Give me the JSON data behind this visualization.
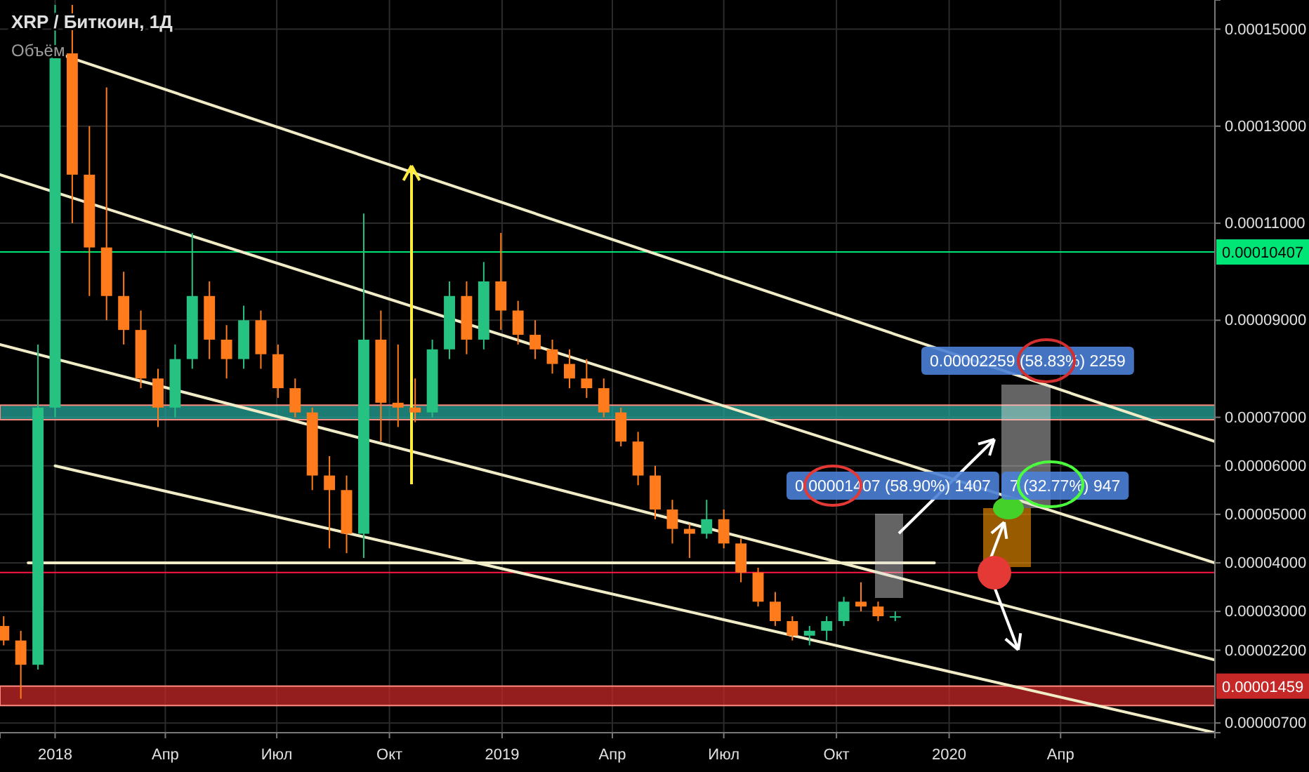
{
  "chart_data": {
    "type": "candlestick",
    "title": "XRP / Биткоин, 1Д",
    "annotations": [
      "Объём",
      "0.00001407 (58.90%) 1407",
      "7 (32.77%) 947",
      "0.00002259 (58.83%) 2259"
    ],
    "x": [
      "2017-11-20",
      "2017-12-04",
      "2017-12-18",
      "2018-01-01",
      "2018-01-15",
      "2018-01-29",
      "2018-02-12",
      "2018-02-26",
      "2018-03-12",
      "2018-03-26",
      "2018-04-09",
      "2018-04-23",
      "2018-05-07",
      "2018-05-21",
      "2018-06-04",
      "2018-06-18",
      "2018-07-02",
      "2018-07-16",
      "2018-07-30",
      "2018-08-13",
      "2018-08-27",
      "2018-09-10",
      "2018-09-24",
      "2018-10-08",
      "2018-10-22",
      "2018-11-05",
      "2018-11-19",
      "2018-12-03",
      "2018-12-17",
      "2018-12-31",
      "2019-01-14",
      "2019-01-28",
      "2019-02-11",
      "2019-02-25",
      "2019-03-11",
      "2019-03-25",
      "2019-04-08",
      "2019-04-22",
      "2019-05-06",
      "2019-05-20",
      "2019-06-03",
      "2019-06-17",
      "2019-07-01",
      "2019-07-15",
      "2019-07-29",
      "2019-08-12",
      "2019-08-26",
      "2019-09-09",
      "2019-09-23",
      "2019-10-07",
      "2019-10-21",
      "2019-11-04",
      "2019-11-18"
    ],
    "ohlc": [
      [
        2.7e-05,
        2.9e-05,
        2.3e-05,
        2.4e-05
      ],
      [
        2.4e-05,
        2.6e-05,
        1.2e-05,
        1.9e-05
      ],
      [
        1.9e-05,
        8.5e-05,
        1.8e-05,
        7.2e-05
      ],
      [
        7.2e-05,
        0.000155,
        7e-05,
        0.000145
      ],
      [
        0.000145,
        0.000155,
        0.00011,
        0.00012
      ],
      [
        0.00012,
        0.00013,
        9.5e-05,
        0.000105
      ],
      [
        0.000105,
        0.000138,
        9e-05,
        9.5e-05
      ],
      [
        9.5e-05,
        0.0001,
        8.5e-05,
        8.8e-05
      ],
      [
        8.8e-05,
        9.2e-05,
        7.6e-05,
        7.8e-05
      ],
      [
        7.8e-05,
        8e-05,
        6.8e-05,
        7.2e-05
      ],
      [
        7.2e-05,
        8.5e-05,
        7e-05,
        8.2e-05
      ],
      [
        8.2e-05,
        0.000108,
        8e-05,
        9.5e-05
      ],
      [
        9.5e-05,
        9.8e-05,
        8.2e-05,
        8.6e-05
      ],
      [
        8.6e-05,
        8.9e-05,
        7.8e-05,
        8.2e-05
      ],
      [
        8.2e-05,
        9.3e-05,
        8e-05,
        9e-05
      ],
      [
        9e-05,
        9.2e-05,
        8e-05,
        8.3e-05
      ],
      [
        8.3e-05,
        8.5e-05,
        7.4e-05,
        7.6e-05
      ],
      [
        7.6e-05,
        7.8e-05,
        7e-05,
        7.1e-05
      ],
      [
        7.1e-05,
        7.2e-05,
        5.5e-05,
        5.8e-05
      ],
      [
        5.8e-05,
        6.2e-05,
        4.3e-05,
        5.5e-05
      ],
      [
        5.5e-05,
        5.8e-05,
        4.2e-05,
        4.6e-05
      ],
      [
        4.6e-05,
        0.000112,
        4.1e-05,
        8.6e-05
      ],
      [
        8.6e-05,
        9.2e-05,
        6.5e-05,
        7.3e-05
      ],
      [
        7.3e-05,
        8.5e-05,
        6.8e-05,
        7.2e-05
      ],
      [
        7.2e-05,
        7.8e-05,
        6.9e-05,
        7.1e-05
      ],
      [
        7.1e-05,
        8.6e-05,
        7e-05,
        8.4e-05
      ],
      [
        8.4e-05,
        9.8e-05,
        8.2e-05,
        9.5e-05
      ],
      [
        9.5e-05,
        9.8e-05,
        8.3e-05,
        8.6e-05
      ],
      [
        8.6e-05,
        0.000102,
        8.4e-05,
        9.8e-05
      ],
      [
        9.8e-05,
        0.000108,
        8.8e-05,
        9.2e-05
      ],
      [
        9.2e-05,
        9.4e-05,
        8.5e-05,
        8.7e-05
      ],
      [
        8.7e-05,
        9e-05,
        8.2e-05,
        8.4e-05
      ],
      [
        8.4e-05,
        8.6e-05,
        7.9e-05,
        8.1e-05
      ],
      [
        8.1e-05,
        8.4e-05,
        7.6e-05,
        7.8e-05
      ],
      [
        7.8e-05,
        8.2e-05,
        7.4e-05,
        7.6e-05
      ],
      [
        7.6e-05,
        7.8e-05,
        7e-05,
        7.1e-05
      ],
      [
        7.1e-05,
        7.2e-05,
        6.4e-05,
        6.5e-05
      ],
      [
        6.5e-05,
        6.7e-05,
        5.6e-05,
        5.8e-05
      ],
      [
        5.8e-05,
        6e-05,
        4.9e-05,
        5.1e-05
      ],
      [
        5.1e-05,
        5.3e-05,
        4.4e-05,
        4.7e-05
      ],
      [
        4.7e-05,
        4.8e-05,
        4.1e-05,
        4.6e-05
      ],
      [
        4.6e-05,
        5.3e-05,
        4.5e-05,
        4.9e-05
      ],
      [
        4.9e-05,
        5.1e-05,
        4.3e-05,
        4.4e-05
      ],
      [
        4.4e-05,
        4.5e-05,
        3.6e-05,
        3.8e-05
      ],
      [
        3.8e-05,
        3.9e-05,
        3.1e-05,
        3.2e-05
      ],
      [
        3.2e-05,
        3.4e-05,
        2.7e-05,
        2.8e-05
      ],
      [
        2.8e-05,
        2.9e-05,
        2.4e-05,
        2.5e-05
      ],
      [
        2.5e-05,
        2.7e-05,
        2.3e-05,
        2.6e-05
      ],
      [
        2.6e-05,
        2.9e-05,
        2.4e-05,
        2.8e-05
      ],
      [
        2.8e-05,
        3.3e-05,
        2.7e-05,
        3.2e-05
      ],
      [
        3.2e-05,
        3.6e-05,
        3e-05,
        3.1e-05
      ],
      [
        3.1e-05,
        3.2e-05,
        2.8e-05,
        2.9e-05
      ],
      [
        2.9e-05,
        3e-05,
        2.8e-05,
        2.9e-05
      ]
    ],
    "series": [
      {
        "type": "line",
        "color": "#f0ecc8",
        "x": [
          "2018-01-03",
          "2020-08-05"
        ],
        "values": [
          0.000145,
          6.5e-05
        ]
      },
      {
        "type": "line",
        "color": "#f0ecc8",
        "x": [
          "2017-11-17",
          "2020-08-05"
        ],
        "values": [
          0.00012,
          4e-05
        ]
      },
      {
        "type": "line",
        "color": "#f0ecc8",
        "x": [
          "2017-11-17",
          "2020-08-05"
        ],
        "values": [
          8.5e-05,
          2e-05
        ]
      },
      {
        "type": "line",
        "color": "#f0ecc8",
        "x": [
          "2018-01-01",
          "2020-08-05"
        ],
        "values": [
          6e-05,
          5e-06
        ]
      },
      {
        "type": "line",
        "color": "#f0ecc8",
        "x": [
          "2017-12-10",
          "2019-12-20"
        ],
        "values": [
          4e-05,
          4e-05
        ]
      }
    ],
    "ref_lines": [
      {
        "axis": "y",
        "value": 0.00010407,
        "label": "0.00010407",
        "color": "#00e676"
      },
      {
        "axis": "y",
        "value": 3.8e-05,
        "color": "#ff1744"
      }
    ],
    "bands": [
      {
        "axis": "y",
        "from": 1.06e-05,
        "to": 1.46e-05,
        "label": "0.00001459",
        "color": "#c62828"
      },
      {
        "axis": "y",
        "from": 6.95e-05,
        "to": 7.25e-05,
        "color": "#26a69a"
      }
    ],
    "xlim": [
      "2017-11-17",
      "2020-08-05"
    ],
    "xticks": [
      {
        "value": "2018-01-01",
        "label": "2018"
      },
      {
        "value": "2018-04-01",
        "label": "Апр"
      },
      {
        "value": "2018-07-01",
        "label": "Июл"
      },
      {
        "value": "2018-10-01",
        "label": "Окт"
      },
      {
        "value": "2019-01-01",
        "label": "2019"
      },
      {
        "value": "2019-04-01",
        "label": "Апр"
      },
      {
        "value": "2019-07-01",
        "label": "Июл"
      },
      {
        "value": "2019-10-01",
        "label": "Окт"
      },
      {
        "value": "2020-01-01",
        "label": "2020"
      },
      {
        "value": "2020-04-01",
        "label": "Апр"
      }
    ],
    "ylim": [
      5e-06,
      0.000156
    ],
    "yticks": [
      {
        "value": 7e-06,
        "label": "0.00000700"
      },
      {
        "value": 2.2e-05,
        "label": "0.00002200"
      },
      {
        "value": 3e-05,
        "label": "0.00003000"
      },
      {
        "value": 4e-05,
        "label": "0.00004000"
      },
      {
        "value": 5e-05,
        "label": "0.00005000"
      },
      {
        "value": 6e-05,
        "label": "0.00006000"
      },
      {
        "value": 7e-05,
        "label": "0.00007000"
      },
      {
        "value": 9e-05,
        "label": "0.00009000"
      },
      {
        "value": 0.00011,
        "label": "0.00011000"
      },
      {
        "value": 0.00013,
        "label": "0.00013000"
      },
      {
        "value": 0.00015,
        "label": "0.00015000"
      }
    ],
    "grid": true
  }
}
